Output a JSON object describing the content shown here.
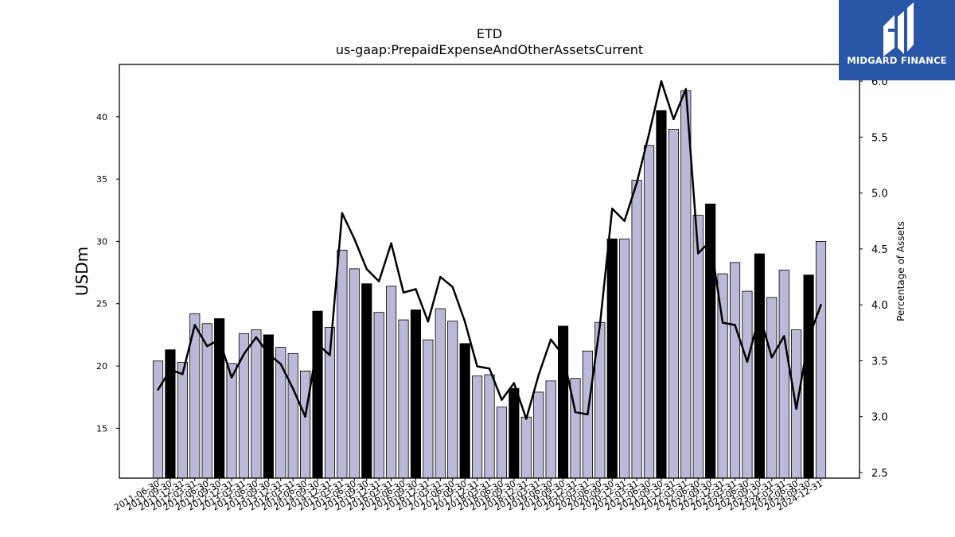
{
  "chart_data": {
    "type": "bar",
    "title": "ETD",
    "subtitle": "us-gaap:PrepaidExpenseAndOtherAssetsCurrent",
    "ylabel": "USDm",
    "y2label": "Percentage of Assets",
    "ylim": [
      11.0,
      44.2
    ],
    "y2lim": [
      2.45,
      6.15
    ],
    "yticks": [
      "15",
      "20",
      "25",
      "30",
      "35",
      "40"
    ],
    "y2ticks": [
      "2.5",
      "3.0",
      "3.5",
      "4.0",
      "4.5",
      "5.0",
      "5.5",
      "6.0"
    ],
    "categories": [
      "2011-06-30",
      "2011-09-30",
      "2011-12-31",
      "2012-03-31",
      "2012-06-30",
      "2012-09-30",
      "2012-12-31",
      "2013-03-31",
      "2013-06-30",
      "2013-09-30",
      "2013-12-31",
      "2014-03-31",
      "2014-06-30",
      "2014-09-30",
      "2014-12-31",
      "2015-03-31",
      "2015-06-30",
      "2015-09-30",
      "2015-12-31",
      "2016-03-31",
      "2016-06-30",
      "2016-09-30",
      "2016-12-31",
      "2017-03-31",
      "2017-06-30",
      "2017-09-30",
      "2017-12-31",
      "2018-03-31",
      "2018-06-30",
      "2018-09-30",
      "2018-12-31",
      "2019-03-31",
      "2019-06-30",
      "2019-09-30",
      "2019-12-31",
      "2020-03-31",
      "2020-06-30",
      "2020-09-30",
      "2020-12-31",
      "2021-03-31",
      "2021-06-30",
      "2021-09-30",
      "2021-12-31",
      "2022-03-31",
      "2022-06-30",
      "2022-09-30",
      "2022-12-31",
      "2023-03-31",
      "2023-06-30",
      "2023-09-30",
      "2023-12-31",
      "2024-03-31",
      "2024-06-30",
      "2024-09-30",
      "2024-12-31"
    ],
    "series": [
      {
        "type": "bar",
        "values": [
          20.4,
          21.3,
          20.3,
          24.2,
          23.4,
          23.8,
          20.2,
          22.6,
          22.9,
          22.5,
          21.5,
          21.0,
          19.6,
          24.4,
          23.1,
          29.3,
          27.8,
          26.6,
          24.3,
          26.4,
          23.7,
          24.5,
          22.1,
          24.6,
          23.6,
          21.8,
          19.2,
          19.3,
          16.7,
          18.2,
          15.9,
          17.9,
          18.8,
          23.2,
          19.0,
          21.2,
          23.5,
          30.2,
          30.2,
          34.9,
          37.7,
          40.5,
          39.0,
          42.1,
          32.1,
          33.0,
          27.4,
          28.3,
          26.0,
          29.0,
          25.5,
          27.7,
          22.9,
          27.3,
          30.0
        ]
      },
      {
        "type": "line",
        "axis": "right",
        "values": [
          3.24,
          3.42,
          3.38,
          3.82,
          3.63,
          3.69,
          3.35,
          3.56,
          3.71,
          3.56,
          3.47,
          3.25,
          3.0,
          3.65,
          3.55,
          4.82,
          4.59,
          4.32,
          4.21,
          4.55,
          4.11,
          4.14,
          3.85,
          4.25,
          4.16,
          3.85,
          3.45,
          3.43,
          3.15,
          3.3,
          2.98,
          3.37,
          3.69,
          3.55,
          3.04,
          3.02,
          3.82,
          4.86,
          4.75,
          5.09,
          5.53,
          6.0,
          5.66,
          5.93,
          4.46,
          4.57,
          3.84,
          3.82,
          3.49,
          3.91,
          3.53,
          3.72,
          3.07,
          3.7,
          4.0
        ]
      }
    ],
    "colors": {
      "bar": "#bcb8d7",
      "bar_highlight": "#000000",
      "line": "#000000"
    }
  },
  "logo": {
    "text": "MIDGARD FINANCE",
    "icon": "midgard-logo-icon"
  }
}
